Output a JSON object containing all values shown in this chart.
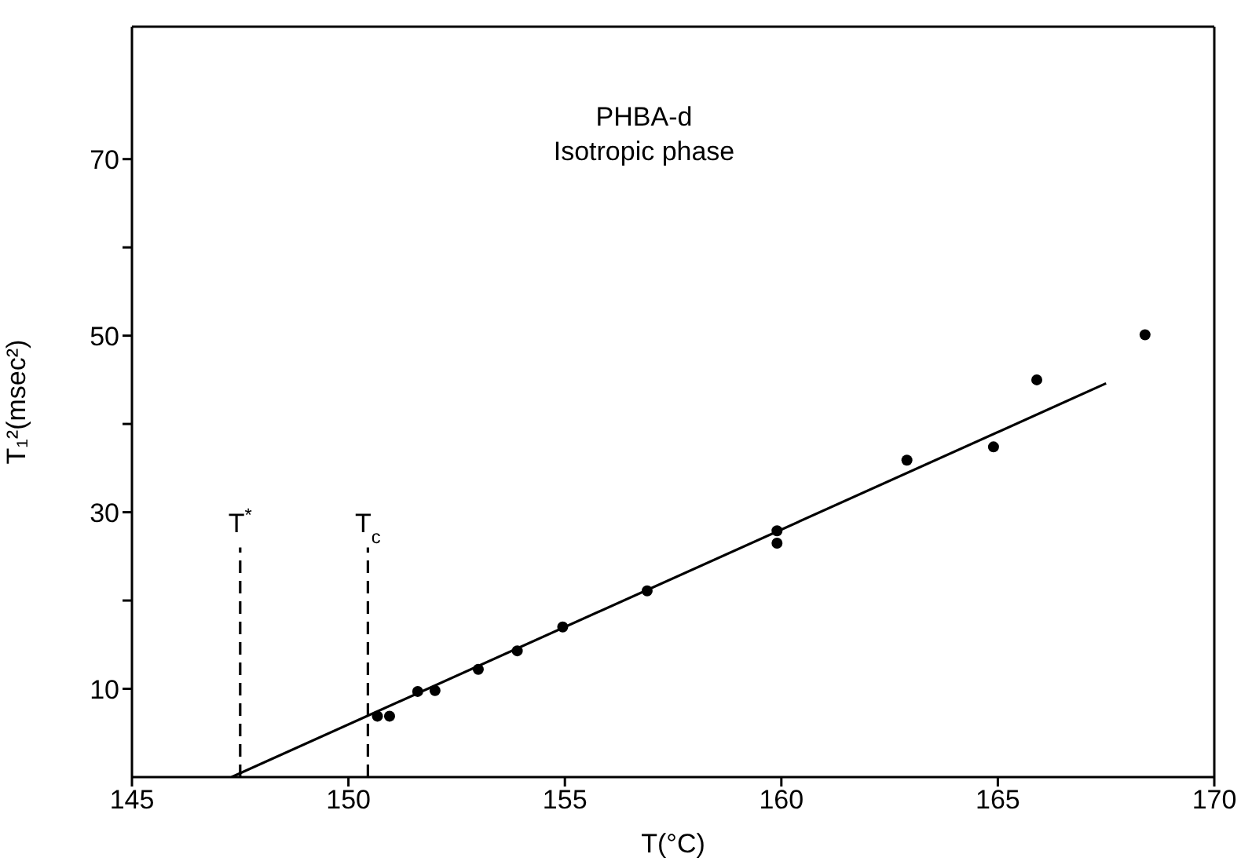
{
  "chart_data": {
    "type": "scatter",
    "xlabel": "T(°C)",
    "ylabel": "T₁²(msec²)",
    "annotations": [
      "PHBA-d",
      "Isotropic phase"
    ],
    "series": [
      {
        "color": "#000000",
        "marker": "circle",
        "x": [
          150.67,
          150.95,
          151.6,
          152.0,
          153.0,
          153.9,
          154.95,
          156.9,
          159.9,
          159.9,
          162.9,
          164.9,
          165.9,
          168.4
        ],
        "values": [
          6.9,
          6.9,
          9.7,
          9.8,
          12.2,
          14.3,
          17.0,
          21.1,
          27.9,
          26.5,
          35.9,
          37.4,
          45.0,
          50.1
        ]
      },
      {
        "type": "line",
        "color": "#000000",
        "marker": "none",
        "line_style": "solid",
        "x": [
          147.3,
          167.5
        ],
        "values": [
          0,
          44.6
        ]
      },
      {
        "type": "line",
        "name": "T$^{*}$",
        "color": "#000000",
        "marker": "none",
        "line_style": "dashed",
        "x": [
          147.5,
          147.5
        ],
        "values": [
          0,
          26
        ]
      },
      {
        "type": "line",
        "name": "T$_{c}$",
        "color": "#000000",
        "marker": "none",
        "line_style": "dashed",
        "x": [
          150.45,
          150.45
        ],
        "values": [
          0,
          26
        ]
      }
    ],
    "xlim": [
      145,
      170
    ],
    "xticks": [
      145,
      150,
      155,
      160,
      165,
      170
    ],
    "ylim": [
      0,
      85
    ],
    "yticks": [
      {
        "value": 10,
        "label": "10"
      },
      {
        "value": 20,
        "label": null
      },
      {
        "value": 30,
        "label": "30"
      },
      {
        "value": 40,
        "label": null
      },
      {
        "value": 50,
        "label": "50"
      },
      {
        "value": 60,
        "label": null
      },
      {
        "value": 70,
        "label": "70"
      }
    ],
    "grid": false,
    "legend": false
  }
}
